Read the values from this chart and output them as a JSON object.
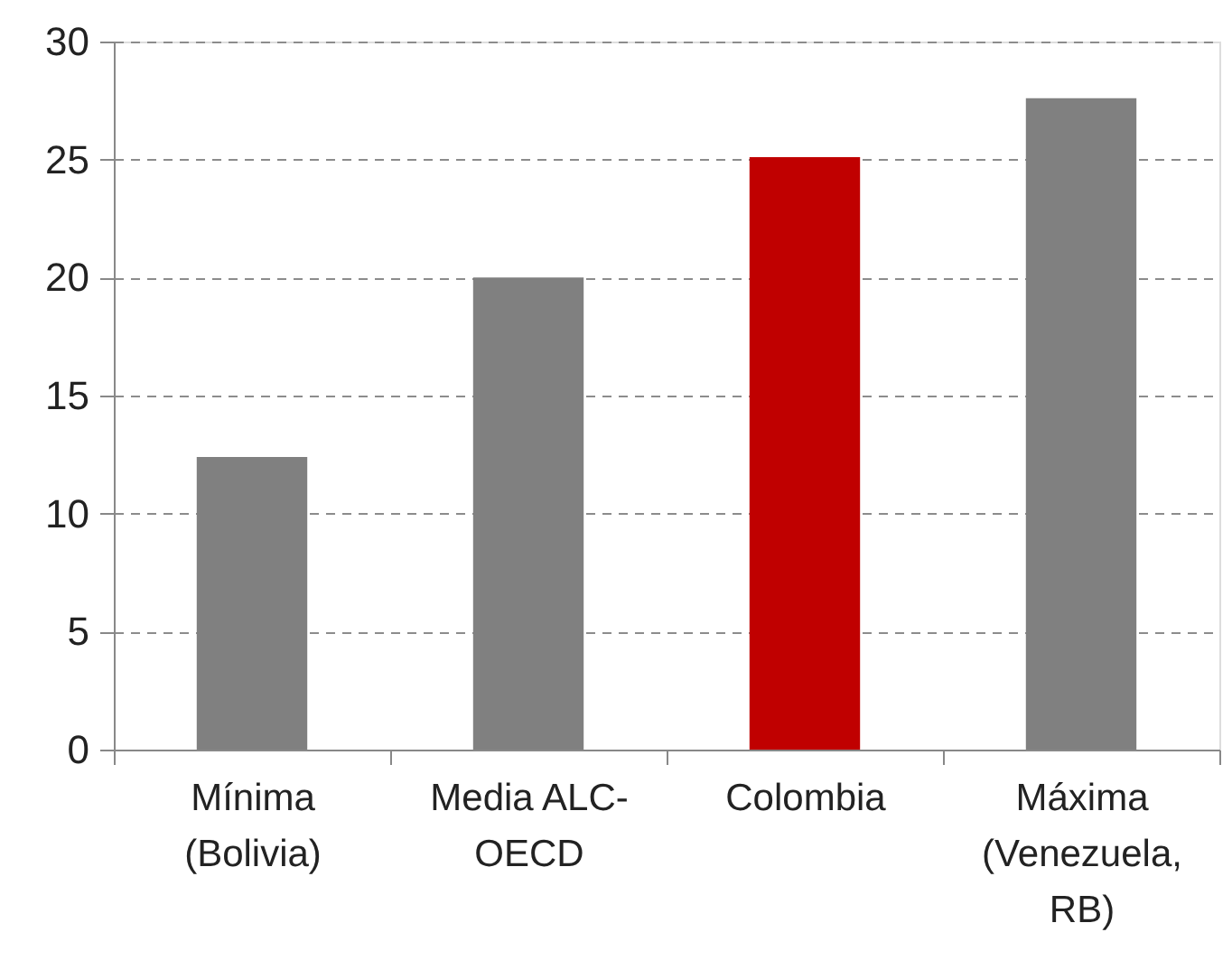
{
  "chart_data": {
    "type": "bar",
    "categories": [
      "Mínima (Bolivia)",
      "Media ALC-OECD",
      "Colombia",
      "Máxima (Venezuela, RB)"
    ],
    "values": [
      12.4,
      20.0,
      25.1,
      27.6
    ],
    "colors": [
      "#808080",
      "#808080",
      "#c00000",
      "#808080"
    ],
    "ylim": [
      0,
      30
    ],
    "yticks": [
      0,
      5,
      10,
      15,
      20,
      25,
      30
    ],
    "grid": "y"
  }
}
